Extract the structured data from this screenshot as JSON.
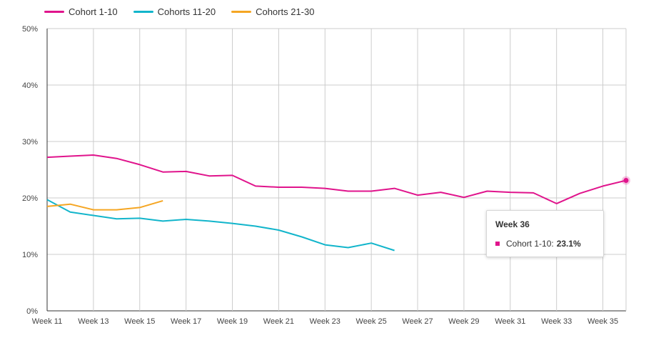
{
  "chart_data": {
    "type": "line",
    "x": [
      "Week 11",
      "Week 12",
      "Week 13",
      "Week 14",
      "Week 15",
      "Week 16",
      "Week 17",
      "Week 18",
      "Week 19",
      "Week 20",
      "Week 21",
      "Week 22",
      "Week 23",
      "Week 24",
      "Week 25",
      "Week 26",
      "Week 27",
      "Week 28",
      "Week 29",
      "Week 30",
      "Week 31",
      "Week 32",
      "Week 33",
      "Week 34",
      "Week 35",
      "Week 36"
    ],
    "x_tick_labels": [
      "Week 11",
      "Week 13",
      "Week 15",
      "Week 17",
      "Week 19",
      "Week 21",
      "Week 23",
      "Week 25",
      "Week 27",
      "Week 29",
      "Week 31",
      "Week 33",
      "Week 35"
    ],
    "y_tick_labels": [
      "0%",
      "10%",
      "20%",
      "30%",
      "40%",
      "50%"
    ],
    "ylim": [
      0,
      50
    ],
    "grid": true,
    "legend_position": "top-left",
    "series": [
      {
        "name": "Cohort 1-10",
        "color": "#e0148c",
        "values": [
          27.2,
          27.4,
          27.6,
          27.0,
          25.9,
          24.6,
          24.7,
          23.9,
          24.0,
          22.1,
          21.9,
          21.9,
          21.7,
          21.2,
          21.2,
          21.7,
          20.5,
          21.0,
          20.1,
          21.2,
          21.0,
          20.9,
          19.0,
          20.8,
          22.1,
          23.1
        ]
      },
      {
        "name": "Cohorts 11-20",
        "color": "#12b5cb",
        "values": [
          19.7,
          17.5,
          16.9,
          16.3,
          16.4,
          15.9,
          16.2,
          15.9,
          15.5,
          15.0,
          14.3,
          13.1,
          11.7,
          11.2,
          12.0,
          10.7,
          null,
          null,
          null,
          null,
          null,
          null,
          null,
          null,
          null,
          null
        ]
      },
      {
        "name": "Cohorts 21-30",
        "color": "#f5a623",
        "values": [
          18.5,
          18.9,
          17.9,
          17.9,
          18.3,
          19.5,
          null,
          null,
          null,
          null,
          null,
          null,
          null,
          null,
          null,
          null,
          null,
          null,
          null,
          null,
          null,
          null,
          null,
          null,
          null,
          null
        ]
      }
    ]
  },
  "tooltip": {
    "title": "Week 36",
    "series_label": "Cohort 1-10:",
    "value": "23.1%",
    "color": "#e0148c"
  }
}
